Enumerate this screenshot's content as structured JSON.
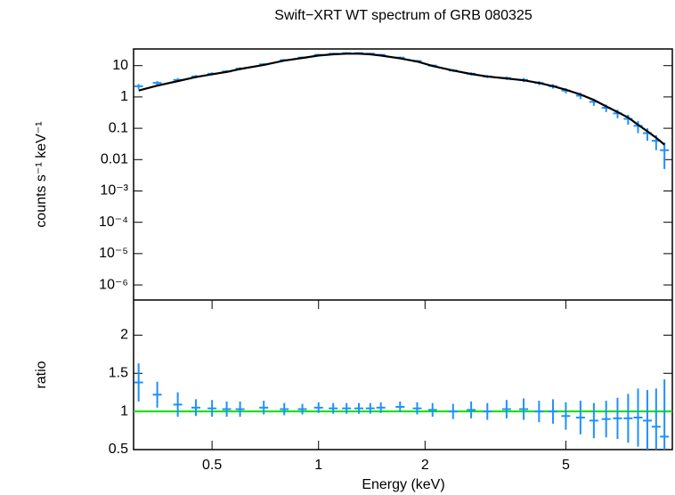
{
  "chart_data": [
    {
      "type": "errorbar",
      "title": "Swift−XRT WT spectrum of GRB 080325",
      "ylabel": "counts s⁻¹ keV⁻¹",
      "xscale": "log",
      "yscale": "log",
      "xlim": [
        0.3,
        10
      ],
      "ylim": [
        3.3e-07,
        34
      ],
      "yticks": [
        10,
        1,
        0.1,
        0.01,
        {
          "value": 0.001,
          "label": "10⁻³"
        },
        {
          "value": 0.0001,
          "label": "10⁻⁴"
        },
        {
          "value": 1e-05,
          "label": "10⁻⁵"
        },
        {
          "value": 1e-06,
          "label": "10⁻⁶"
        }
      ],
      "x": [
        0.31,
        0.35,
        0.4,
        0.45,
        0.5,
        0.55,
        0.6,
        0.7,
        0.8,
        0.9,
        1.0,
        1.1,
        1.2,
        1.3,
        1.4,
        1.5,
        1.7,
        1.9,
        2.1,
        2.4,
        2.7,
        3.0,
        3.4,
        3.8,
        4.2,
        4.6,
        5.0,
        5.5,
        6.0,
        6.5,
        7.0,
        7.5,
        8.0,
        8.5,
        9.0,
        9.5
      ],
      "series": [
        {
          "kind": "data",
          "color": "#1e90ff",
          "values": [
            2.2,
            2.8,
            3.5,
            4.5,
            5.5,
            6.5,
            8,
            11,
            15,
            18,
            22,
            24,
            25,
            25,
            24,
            22,
            18,
            14,
            10,
            7,
            5.5,
            4.5,
            4,
            3.5,
            2.8,
            2.2,
            1.6,
            1.1,
            0.7,
            0.45,
            0.3,
            0.2,
            0.12,
            0.07,
            0.04,
            0.02
          ],
          "errors": [
            0.4,
            0.4,
            0.5,
            0.5,
            0.6,
            0.6,
            0.8,
            1,
            1.2,
            1.3,
            1.5,
            1.6,
            1.6,
            1.6,
            1.6,
            1.5,
            1.3,
            1.1,
            0.9,
            0.7,
            0.6,
            0.5,
            0.5,
            0.5,
            0.4,
            0.35,
            0.3,
            0.25,
            0.18,
            0.12,
            0.09,
            0.07,
            0.05,
            0.03,
            0.02,
            0.015
          ]
        },
        {
          "kind": "model",
          "color": "#000000",
          "values": [
            1.6,
            2.3,
            3.2,
            4.3,
            5.3,
            6.3,
            7.8,
            10.5,
            14.5,
            17.5,
            21,
            23,
            24,
            24,
            23,
            21,
            17,
            13.5,
            9.8,
            7,
            5.4,
            4.5,
            3.9,
            3.4,
            2.8,
            2.2,
            1.7,
            1.2,
            0.8,
            0.5,
            0.33,
            0.22,
            0.13,
            0.08,
            0.05,
            0.03
          ]
        }
      ]
    },
    {
      "type": "errorbar",
      "ylabel": "ratio",
      "xlabel": "Energy (keV)",
      "xscale": "log",
      "xlim": [
        0.3,
        10
      ],
      "ylim": [
        0.5,
        2.46
      ],
      "xticks": [
        0.5,
        1,
        2,
        5
      ],
      "yticks": [
        0.5,
        1,
        1.5,
        2
      ],
      "reference_line": 1,
      "reference_color": "#00e000",
      "x": [
        0.31,
        0.35,
        0.4,
        0.45,
        0.5,
        0.55,
        0.6,
        0.7,
        0.8,
        0.9,
        1.0,
        1.1,
        1.2,
        1.3,
        1.4,
        1.5,
        1.7,
        1.9,
        2.1,
        2.4,
        2.7,
        3.0,
        3.4,
        3.8,
        4.2,
        4.6,
        5.0,
        5.5,
        6.0,
        6.5,
        7.0,
        7.5,
        8.0,
        8.5,
        9.0,
        9.5
      ],
      "series": [
        {
          "kind": "data",
          "color": "#1e90ff",
          "values": [
            1.38,
            1.22,
            1.09,
            1.05,
            1.04,
            1.03,
            1.03,
            1.05,
            1.03,
            1.03,
            1.05,
            1.04,
            1.04,
            1.04,
            1.04,
            1.05,
            1.06,
            1.04,
            1.02,
            1.0,
            1.02,
            1.0,
            1.03,
            1.03,
            1.0,
            1.0,
            0.94,
            0.92,
            0.88,
            0.9,
            0.91,
            0.91,
            0.92,
            0.88,
            0.8,
            0.67
          ],
          "errors": [
            0.25,
            0.17,
            0.16,
            0.11,
            0.11,
            0.1,
            0.1,
            0.09,
            0.08,
            0.07,
            0.07,
            0.07,
            0.07,
            0.07,
            0.07,
            0.07,
            0.07,
            0.08,
            0.09,
            0.1,
            0.11,
            0.11,
            0.12,
            0.14,
            0.14,
            0.16,
            0.18,
            0.22,
            0.23,
            0.24,
            0.27,
            0.32,
            0.38,
            0.4,
            0.5,
            0.75
          ]
        }
      ]
    }
  ]
}
